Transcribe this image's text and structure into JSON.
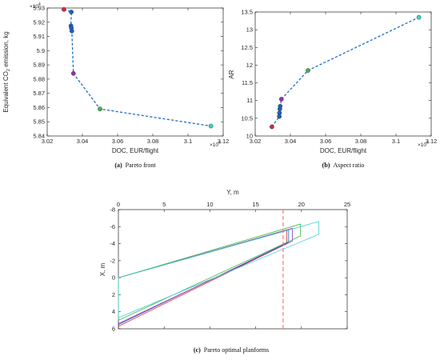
{
  "chart_data": [
    {
      "type": "scatter",
      "caption_letter": "(a)",
      "caption_text": "Pareto front",
      "xlabel": "DOC, EUR/flight",
      "ylabel_main": "Equivalent CO",
      "ylabel_sub": "2",
      "ylabel_rest": " emission, kg",
      "x_multiplier": "×10",
      "x_multiplier_exp": "4",
      "y_multiplier": "×10",
      "y_multiplier_exp": "4",
      "xlim": [
        3.02,
        3.12
      ],
      "ylim": [
        5.84,
        5.93
      ],
      "xticks": [
        "3.02",
        "3.04",
        "3.06",
        "3.08",
        "3.1",
        "3.12"
      ],
      "yticks": [
        "5.84",
        "5.85",
        "5.86",
        "5.87",
        "5.88",
        "5.89",
        "5.9",
        "5.91",
        "5.92",
        "5.93"
      ],
      "series": [
        {
          "points": [
            {
              "x": 3.0295,
              "y": 5.929,
              "color": "#d62839"
            },
            {
              "x": 3.0337,
              "y": 5.9272,
              "color": "#1f5fbf"
            },
            {
              "x": 3.0335,
              "y": 5.9175,
              "color": "#1f5fbf"
            },
            {
              "x": 3.0337,
              "y": 5.916,
              "color": "#1f5fbf"
            },
            {
              "x": 3.034,
              "y": 5.9138,
              "color": "#1f5fbf"
            },
            {
              "x": 3.0349,
              "y": 5.884,
              "color": "#9b2fae"
            },
            {
              "x": 3.05,
              "y": 5.859,
              "color": "#3cb84a"
            },
            {
              "x": 3.113,
              "y": 5.847,
              "color": "#3fd1d1"
            }
          ]
        }
      ]
    },
    {
      "type": "scatter",
      "caption_letter": "(b)",
      "caption_text": "Aspect ratio",
      "xlabel": "DOC, EUR/flight",
      "ylabel": "AR",
      "x_multiplier": "×10",
      "x_multiplier_exp": "4",
      "xlim": [
        3.02,
        3.12
      ],
      "ylim": [
        10,
        13.5
      ],
      "xticks": [
        "3.02",
        "3.04",
        "3.06",
        "3.08",
        "3.1",
        "3.12"
      ],
      "yticks": [
        "10",
        "10.5",
        "11",
        "11.5",
        "12",
        "12.5",
        "13",
        "13.5"
      ],
      "series": [
        {
          "points": [
            {
              "x": 3.0295,
              "y": 10.26,
              "color": "#d62839"
            },
            {
              "x": 3.0337,
              "y": 10.55,
              "color": "#1f5fbf"
            },
            {
              "x": 3.0338,
              "y": 10.65,
              "color": "#1f5fbf"
            },
            {
              "x": 3.034,
              "y": 10.76,
              "color": "#1f5fbf"
            },
            {
              "x": 3.0342,
              "y": 10.84,
              "color": "#1f5fbf"
            },
            {
              "x": 3.0349,
              "y": 11.04,
              "color": "#9b2fae"
            },
            {
              "x": 3.05,
              "y": 11.85,
              "color": "#3cb84a"
            },
            {
              "x": 3.113,
              "y": 13.35,
              "color": "#3fd1d1"
            }
          ]
        }
      ]
    },
    {
      "type": "line",
      "caption_letter": "(c)",
      "caption_text": "Pareto optimal planforms",
      "xlabel": "Y, m",
      "ylabel": "X, m",
      "xlim": [
        0,
        25
      ],
      "ylim": [
        6,
        -8
      ],
      "xticks": [
        "0",
        "5",
        "10",
        "15",
        "20",
        "25"
      ],
      "yticks": [
        "-8",
        "-6",
        "-4",
        "-2",
        "0",
        "2",
        "4",
        "6"
      ],
      "reference_line_y": 18.0,
      "reference_color": "#ff6a6a",
      "series": [
        {
          "color": "#d62839",
          "span": 18.4,
          "root_le": 0.0,
          "root_te": 5.7,
          "tip_le": -5.6,
          "tip_te": -4.0
        },
        {
          "color": "#1f5fbf",
          "span": 18.6,
          "root_le": 0.0,
          "root_te": 5.5,
          "tip_le": -5.6,
          "tip_te": -4.2
        },
        {
          "color": "#9b2fae",
          "span": 19.0,
          "root_le": 0.0,
          "root_te": 5.4,
          "tip_le": -5.8,
          "tip_te": -4.3
        },
        {
          "color": "#3cb84a",
          "span": 19.9,
          "root_le": 0.0,
          "root_te": 5.0,
          "tip_le": -6.3,
          "tip_te": -4.9
        },
        {
          "color": "#3fd1d1",
          "span": 21.9,
          "root_le": 0.0,
          "root_te": 4.7,
          "tip_le": -6.6,
          "tip_te": -5.1
        }
      ]
    }
  ]
}
